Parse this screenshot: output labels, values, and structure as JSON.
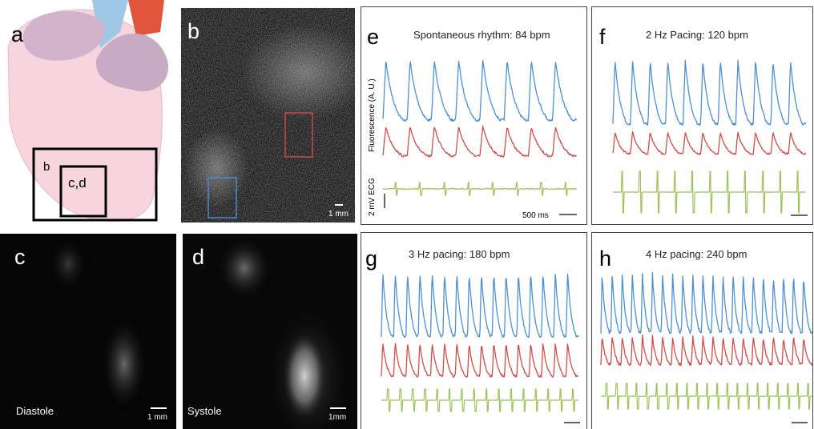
{
  "panel_a": {
    "label": "a",
    "region_labels": [
      "b",
      "c,d"
    ]
  },
  "panel_b": {
    "label": "b",
    "scale": "1 mm"
  },
  "panel_c": {
    "label": "c",
    "state": "Diastole",
    "scale": "1 mm"
  },
  "panel_d": {
    "label": "d",
    "state": "Systole",
    "scale": "1mm"
  },
  "panel_e": {
    "label": "e",
    "title": "Spontaneous rhythm: 84 bpm",
    "y_label": "Fluorescence (A. U.)",
    "ecg_label": "2 mV ECG",
    "time_scale": "500 ms"
  },
  "panel_f": {
    "label": "f",
    "title": "2 Hz Pacing: 120 bpm"
  },
  "panel_g": {
    "label": "g",
    "title": "3 Hz pacing: 180 bpm"
  },
  "panel_h": {
    "label": "h",
    "title": "4 Hz pacing: 240 bpm"
  }
}
